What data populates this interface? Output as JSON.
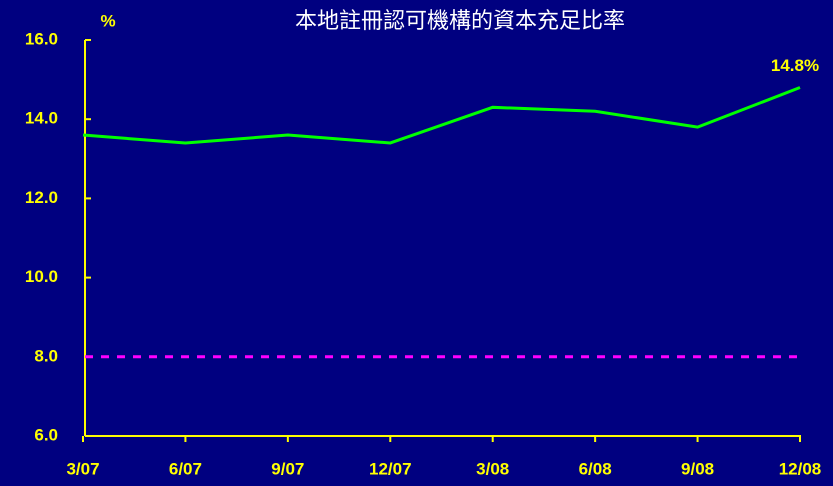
{
  "chart_data": {
    "type": "line",
    "title": "本地註冊認可機構的資本充足比率",
    "y_unit": "%",
    "categories": [
      "3/07",
      "6/07",
      "9/07",
      "12/07",
      "3/08",
      "6/08",
      "9/08",
      "12/08"
    ],
    "series": [
      {
        "color": "#00ff00",
        "values": [
          13.6,
          13.4,
          13.6,
          13.4,
          14.3,
          14.2,
          13.8,
          14.8
        ],
        "value_labels": [
          null,
          null,
          null,
          null,
          null,
          null,
          null,
          "14.8%"
        ]
      }
    ],
    "reference_line": {
      "value": 8,
      "color": "#ff00ff",
      "style": "dashed"
    },
    "ylim": [
      6,
      16
    ],
    "yticks": [
      {
        "value": 6,
        "label": "6.0"
      },
      {
        "value": 8,
        "label": "8.0"
      },
      {
        "value": 10,
        "label": "10.0"
      },
      {
        "value": 12,
        "label": "12.0"
      },
      {
        "value": 14,
        "label": "14.0"
      },
      {
        "value": 16,
        "label": "16.0"
      }
    ],
    "axis_color": "#ffff00"
  }
}
